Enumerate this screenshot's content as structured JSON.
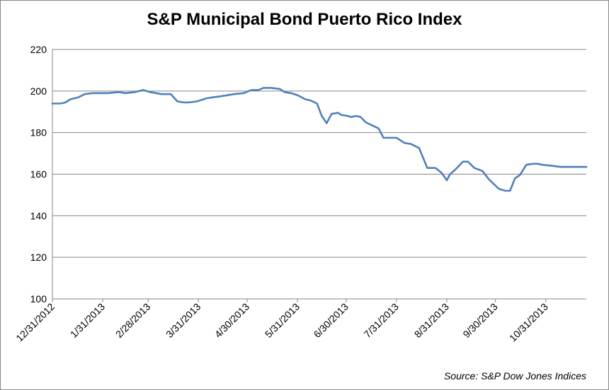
{
  "chart_data": {
    "type": "line",
    "title": "S&P Municipal Bond Puerto Rico Index",
    "source": "Source:  S&P Dow Jones Indices",
    "xlabel": "",
    "ylabel": "",
    "ylim": [
      100,
      220
    ],
    "yticks": [
      "100",
      "120",
      "140",
      "160",
      "180",
      "200",
      "220"
    ],
    "xlim": [
      "2012-12-31",
      "2013-11-25"
    ],
    "xticks": [
      {
        "label": "12/31/2012",
        "date": "2012-12-31"
      },
      {
        "label": "1/31/2013",
        "date": "2013-01-31"
      },
      {
        "label": "2/28/2013",
        "date": "2013-02-28"
      },
      {
        "label": "3/31/2013",
        "date": "2013-03-31"
      },
      {
        "label": "4/30/2013",
        "date": "2013-04-30"
      },
      {
        "label": "5/31/2013",
        "date": "2013-05-31"
      },
      {
        "label": "6/30/2013",
        "date": "2013-06-30"
      },
      {
        "label": "7/31/2013",
        "date": "2013-07-31"
      },
      {
        "label": "8/31/2013",
        "date": "2013-08-31"
      },
      {
        "label": "9/30/2013",
        "date": "2013-09-30"
      },
      {
        "label": "10/31/2013",
        "date": "2013-10-31"
      }
    ],
    "grid": true,
    "line_color": "#4F81BD",
    "series": [
      {
        "x": [
          "2012-12-31",
          "2013-01-05",
          "2013-01-08",
          "2013-01-11",
          "2013-01-16",
          "2013-01-20",
          "2013-01-25",
          "2013-01-28",
          "2013-02-03",
          "2013-02-10",
          "2013-02-14",
          "2013-02-20",
          "2013-02-25",
          "2013-03-01",
          "2013-03-05",
          "2013-03-08",
          "2013-03-14",
          "2013-03-18",
          "2013-03-22",
          "2013-03-25",
          "2013-03-30",
          "2013-04-05",
          "2013-04-09",
          "2013-04-14",
          "2013-04-18",
          "2013-04-22",
          "2013-04-28",
          "2013-05-01",
          "2013-05-03",
          "2013-05-07",
          "2013-05-10",
          "2013-05-15",
          "2013-05-20",
          "2013-05-23",
          "2013-05-27",
          "2013-05-31",
          "2013-06-05",
          "2013-06-08",
          "2013-06-12",
          "2013-06-15",
          "2013-06-18",
          "2013-06-21",
          "2013-06-25",
          "2013-06-27",
          "2013-07-01",
          "2013-07-03",
          "2013-07-06",
          "2013-07-09",
          "2013-07-12",
          "2013-07-16",
          "2013-07-20",
          "2013-07-23",
          "2013-07-27",
          "2013-07-31",
          "2013-08-05",
          "2013-08-09",
          "2013-08-14",
          "2013-08-19",
          "2013-08-24",
          "2013-08-28",
          "2013-08-31",
          "2013-09-02",
          "2013-09-05",
          "2013-09-10",
          "2013-09-13",
          "2013-09-17",
          "2013-09-22",
          "2013-09-26",
          "2013-10-02",
          "2013-10-06",
          "2013-10-09",
          "2013-10-12",
          "2013-10-15",
          "2013-10-19",
          "2013-10-23",
          "2013-10-26",
          "2013-10-29",
          "2013-11-04",
          "2013-11-09",
          "2013-11-14",
          "2013-11-20",
          "2013-11-25"
        ],
        "y": [
          194,
          194,
          194.5,
          196,
          197,
          198.5,
          199,
          199,
          199,
          199.5,
          199,
          199.5,
          200.5,
          199.5,
          199,
          198.5,
          198.5,
          195,
          194.5,
          194.5,
          195,
          196.5,
          197,
          197.5,
          198,
          198.5,
          199,
          200,
          200.5,
          200.5,
          201.5,
          201.5,
          201,
          199.5,
          199,
          198,
          196,
          195.5,
          194,
          188,
          184.5,
          189,
          189.5,
          188.5,
          188,
          187.5,
          188,
          187.5,
          185,
          183.5,
          182,
          177.5,
          177.5,
          177.5,
          175,
          174.5,
          172.5,
          163,
          163,
          160.5,
          157,
          160,
          162,
          166,
          166,
          163,
          161.5,
          157.5,
          153,
          152,
          152,
          158,
          159.5,
          164.5,
          165,
          165,
          164.5,
          164,
          163.5,
          163.5,
          163.5,
          163.5
        ]
      }
    ]
  }
}
